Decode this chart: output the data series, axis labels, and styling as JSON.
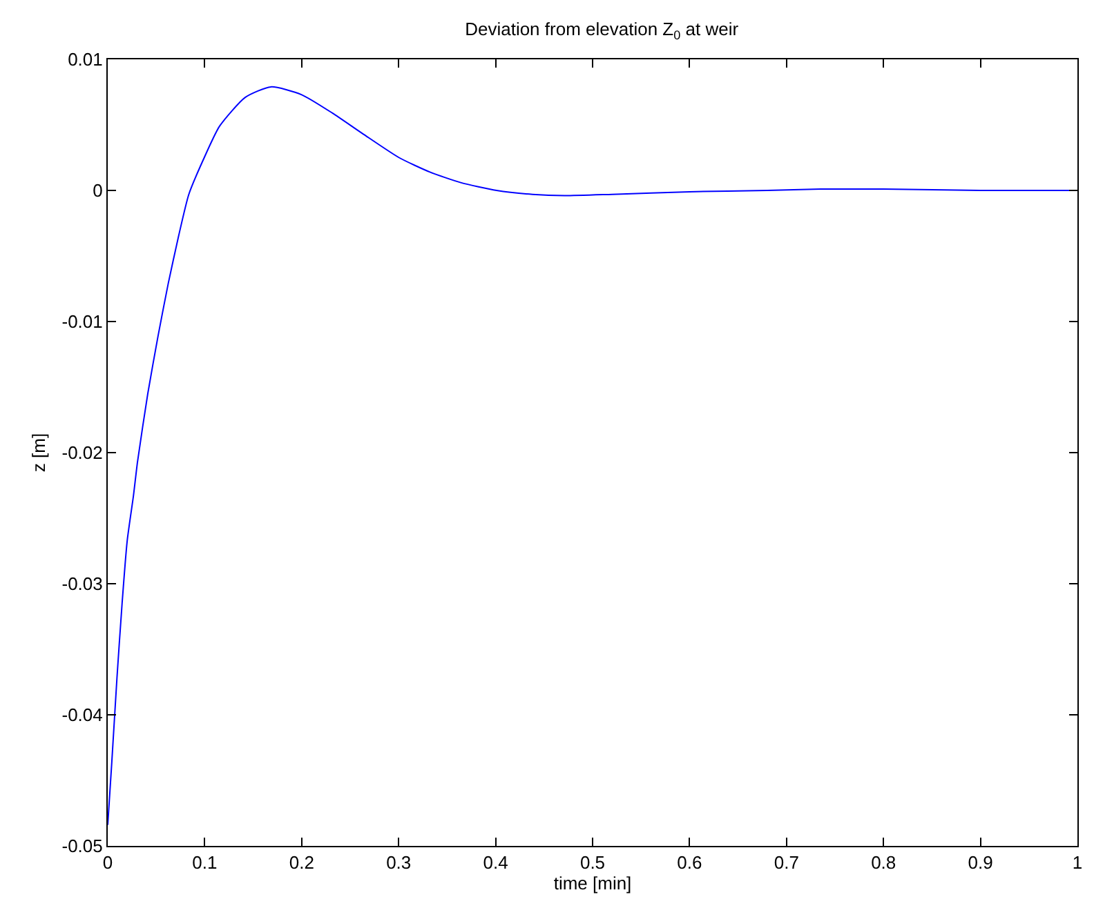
{
  "chart_data": {
    "type": "line",
    "title": "Deviation from elevation Z$_{0}$ at weir",
    "xlabel": "time [min]",
    "ylabel": "z [m]",
    "x": [
      0,
      0.0042,
      0.0095,
      0.0148,
      0.0201,
      0.0265,
      0.0307,
      0.0413,
      0.0519,
      0.0624,
      0.073,
      0.0836,
      0.0995,
      0.1153,
      0.1418,
      0.1683,
      0.2,
      0.2317,
      0.2635,
      0.3005,
      0.3323,
      0.364,
      0.401,
      0.438,
      0.471,
      0.52,
      0.6,
      0.68,
      0.735,
      0.8,
      0.9,
      1
    ],
    "series": [
      {
        "color": "#0000ff",
        "values": [
          -0.0484,
          -0.0436,
          -0.0372,
          -0.0315,
          -0.0267,
          -0.0233,
          -0.0207,
          -0.0155,
          -0.0111,
          -0.0071,
          -0.0035,
          -0.0003,
          0.0025,
          0.0049,
          0.0071,
          0.0079,
          0.0073,
          0.0059,
          0.0043,
          0.0025,
          0.0014,
          0.0006,
          0,
          -0.0003,
          -0.0004,
          -0.0003,
          -0.0001,
          0,
          0.0001,
          0.0001,
          0,
          0
        ]
      }
    ],
    "xlim": [
      0,
      1
    ],
    "xticks": [
      0,
      0.1,
      0.2,
      0.3,
      0.4,
      0.5,
      0.6,
      0.7,
      0.8,
      0.9,
      1
    ],
    "ylim": [
      -0.05,
      0.01
    ],
    "yticks": [
      -0.05,
      -0.04,
      -0.03,
      -0.02,
      -0.01,
      0,
      0.01
    ],
    "grid": false,
    "marker": "none",
    "line_style": "solid"
  }
}
